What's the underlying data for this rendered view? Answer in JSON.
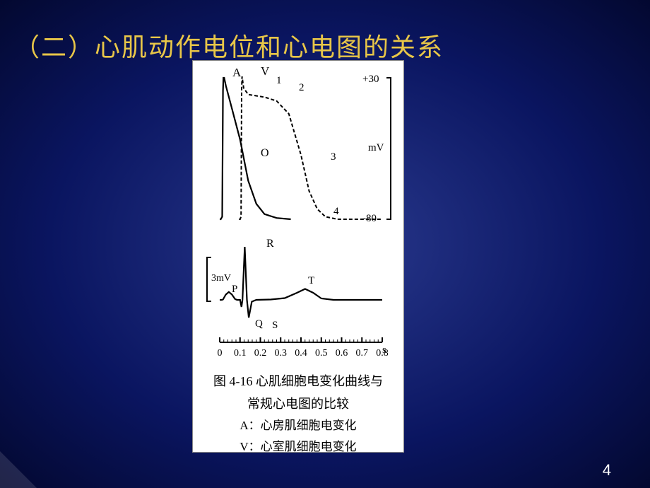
{
  "slide": {
    "title": "（二）心肌动作电位和心电图的关系",
    "page_number": "4",
    "background_colors": {
      "center": "#2a3a8f",
      "mid": "#0a1560",
      "edge": "#030830"
    },
    "title_color": "#e8c648",
    "title_fontsize": 36
  },
  "figure": {
    "panel_bg": "#ffffff",
    "ap_chart": {
      "type": "line",
      "y_axis": {
        "unit": "mV",
        "top": "+30",
        "bottom": "-80",
        "top_val": 30,
        "bottom_val": -80
      },
      "curve_A_label": "A",
      "curve_V_label": "V",
      "phase_labels": {
        "p1": "1",
        "p2": "2",
        "p3": "3",
        "p4": "4",
        "O": "O"
      },
      "line_color": "#000000",
      "line_width_solid": 2.2,
      "line_width_dash": 2.0,
      "dash_pattern": "5,3",
      "curve_A": [
        [
          0.0,
          -80
        ],
        [
          0.005,
          -80
        ],
        [
          0.012,
          -78
        ],
        [
          0.016,
          20
        ],
        [
          0.018,
          30
        ],
        [
          0.022,
          30
        ],
        [
          0.03,
          24
        ],
        [
          0.06,
          6
        ],
        [
          0.1,
          -18
        ],
        [
          0.14,
          -50
        ],
        [
          0.18,
          -68
        ],
        [
          0.22,
          -76
        ],
        [
          0.28,
          -79
        ],
        [
          0.35,
          -80
        ]
      ],
      "curve_V": [
        [
          0.095,
          -80
        ],
        [
          0.1,
          -80
        ],
        [
          0.105,
          -78
        ],
        [
          0.108,
          20
        ],
        [
          0.11,
          31
        ],
        [
          0.118,
          22
        ],
        [
          0.14,
          17
        ],
        [
          0.18,
          16
        ],
        [
          0.22,
          15
        ],
        [
          0.28,
          12
        ],
        [
          0.34,
          2
        ],
        [
          0.4,
          -30
        ],
        [
          0.44,
          -58
        ],
        [
          0.48,
          -72
        ],
        [
          0.52,
          -78
        ],
        [
          0.58,
          -80
        ],
        [
          0.8,
          -80
        ]
      ]
    },
    "ecg_chart": {
      "type": "line",
      "y_scale_label": "3mV",
      "wave_labels": {
        "P": "P",
        "Q": "Q",
        "R": "R",
        "S": "S",
        "T": "T"
      },
      "line_color": "#000000",
      "line_width": 2.2,
      "baseline": 0,
      "y_range": [
        -1.2,
        3.2
      ],
      "curve": [
        [
          0.0,
          0.0
        ],
        [
          0.01,
          0.0
        ],
        [
          0.016,
          0.02
        ],
        [
          0.03,
          0.3
        ],
        [
          0.045,
          0.45
        ],
        [
          0.06,
          0.3
        ],
        [
          0.075,
          0.05
        ],
        [
          0.085,
          0.0
        ],
        [
          0.1,
          0.0
        ],
        [
          0.107,
          -0.4
        ],
        [
          0.112,
          0.0
        ],
        [
          0.123,
          3.0
        ],
        [
          0.134,
          0.0
        ],
        [
          0.143,
          -1.0
        ],
        [
          0.158,
          -0.1
        ],
        [
          0.18,
          0.0
        ],
        [
          0.25,
          0.02
        ],
        [
          0.32,
          0.1
        ],
        [
          0.38,
          0.4
        ],
        [
          0.42,
          0.62
        ],
        [
          0.46,
          0.4
        ],
        [
          0.5,
          0.08
        ],
        [
          0.56,
          0.0
        ],
        [
          0.8,
          0.0
        ]
      ]
    },
    "time_axis": {
      "unit": "s",
      "ticks": [
        "0",
        "0.1",
        "0.2",
        "0.3",
        "0.4",
        "0.5",
        "0.6",
        "0.7",
        "0.8"
      ],
      "tick_values": [
        0,
        0.1,
        0.2,
        0.3,
        0.4,
        0.5,
        0.6,
        0.7,
        0.8
      ],
      "line_color": "#000000"
    },
    "caption": {
      "line1": "图 4-16  心肌细胞电变化曲线与",
      "line2": "常规心电图的比较",
      "sub1": "A：心房肌细胞电变化",
      "sub2": "V：心室肌细胞电变化",
      "fig_number": "4-16",
      "fontsize": 18,
      "sub_fontsize": 17,
      "font_family": "SimSun"
    }
  }
}
